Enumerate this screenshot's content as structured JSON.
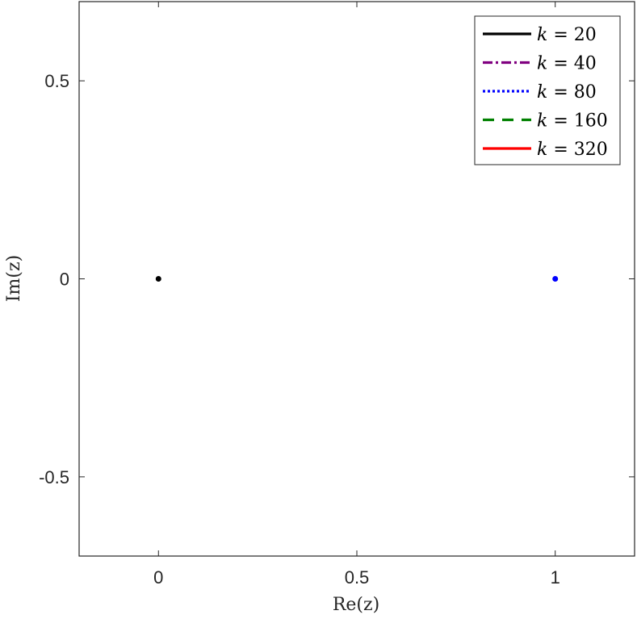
{
  "chart_data": {
    "type": "line",
    "xlabel": "Re(z)",
    "ylabel": "Im(z)",
    "xlim": [
      -0.2,
      1.2
    ],
    "ylim": [
      -0.7,
      0.7
    ],
    "xticks": [
      0,
      0.5,
      1
    ],
    "xtick_labels": [
      "0",
      "0.5",
      "1"
    ],
    "yticks": [
      -0.5,
      0,
      0.5
    ],
    "ytick_labels": [
      "-0.5",
      "0",
      "0.5"
    ],
    "grid": false,
    "legend_position": "top-right",
    "series": [
      {
        "name": "k = 20",
        "var": "k",
        "value_text": "= 20",
        "color": "#000000",
        "style": "solid",
        "x": [
          0
        ],
        "y": [
          0
        ]
      },
      {
        "name": "k = 40",
        "var": "k",
        "value_text": "= 40",
        "color": "#800080",
        "style": "dashdot",
        "x": [],
        "y": []
      },
      {
        "name": "k = 80",
        "var": "k",
        "value_text": "= 80",
        "color": "#0000ff",
        "style": "dotted",
        "x": [
          1
        ],
        "y": [
          0
        ]
      },
      {
        "name": "k = 160",
        "var": "k",
        "value_text": "= 160",
        "color": "#008000",
        "style": "dashed",
        "x": [],
        "y": []
      },
      {
        "name": "k = 320",
        "var": "k",
        "value_text": "= 320",
        "color": "#ff0000",
        "style": "solid",
        "x": [],
        "y": []
      }
    ]
  }
}
